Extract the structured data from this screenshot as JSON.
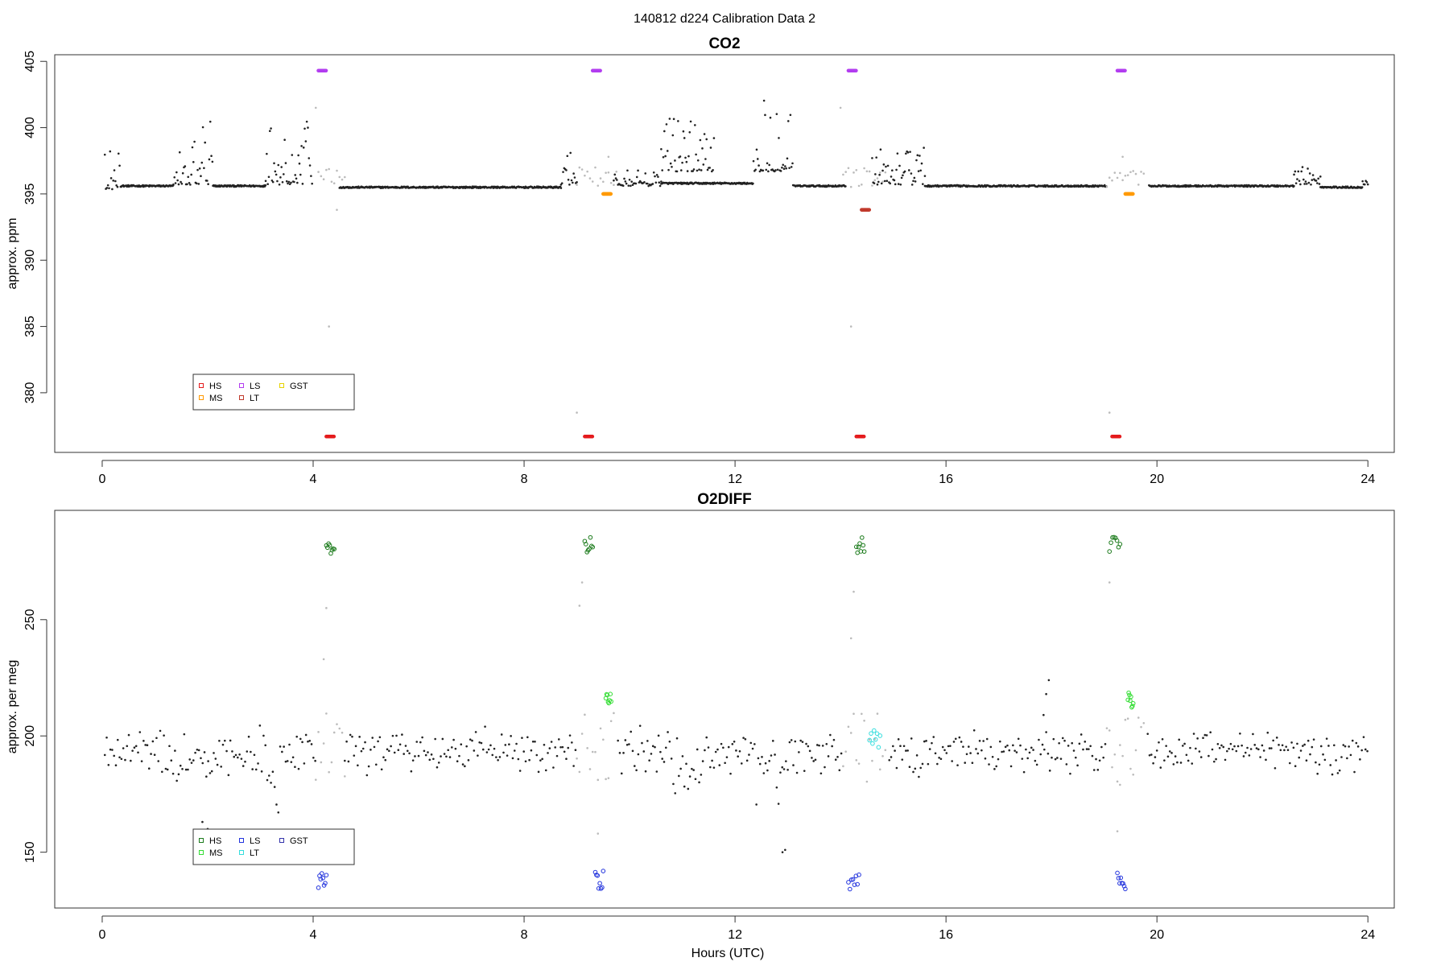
{
  "page_title": "140812   d224   Calibration Data 2",
  "shared_xlabel": "Hours (UTC)",
  "colors": {
    "data": "#222222",
    "excluded": "#bbbbbb",
    "HS_co2": "#e41a1c",
    "MS_co2": "#ff9900",
    "LS_co2": "#b23cf0",
    "LT_co2": "#c0392b",
    "GST_co2": "#e6d200",
    "HS_o2": "#1a7a1a",
    "MS_o2": "#33dd33",
    "LS_o2": "#2233dd",
    "LT_o2": "#33dddd",
    "GST_o2": "#3333aa"
  },
  "chart_data": [
    {
      "id": "co2",
      "type": "scatter",
      "title": "CO2",
      "ylabel": "approx. ppm",
      "xlabel": "",
      "xlim": [
        -0.9,
        24.5
      ],
      "ylim": [
        375.5,
        405.5
      ],
      "xticks": [
        "0",
        "4",
        "8",
        "12",
        "16",
        "20",
        "24"
      ],
      "yticks": [
        "380",
        "385",
        "390",
        "395",
        "400",
        "405"
      ],
      "legend": {
        "placement": "bottom-left",
        "entries": [
          [
            "HS",
            "MS"
          ],
          [
            "LS",
            "LT"
          ],
          [
            "GST"
          ]
        ]
      },
      "baseline_segments": [
        {
          "x": [
            0.35,
            1.35
          ],
          "y": 395.6
        },
        {
          "x": [
            2.1,
            3.1
          ],
          "y": 395.6
        },
        {
          "x": [
            4.5,
            8.7
          ],
          "y": 395.5
        },
        {
          "x": [
            10.6,
            12.35
          ],
          "y": 395.8
        },
        {
          "x": [
            13.1,
            14.1
          ],
          "y": 395.6
        },
        {
          "x": [
            15.6,
            19.05
          ],
          "y": 395.6
        },
        {
          "x": [
            19.85,
            22.6
          ],
          "y": 395.6
        },
        {
          "x": [
            23.1,
            23.9
          ],
          "y": 395.5
        }
      ],
      "calibration_runs": [
        {
          "name": "LS",
          "y": 404.3,
          "x_ranges": [
            [
              4.1,
              4.25
            ],
            [
              9.3,
              9.45
            ],
            [
              14.15,
              14.3
            ],
            [
              19.25,
              19.4
            ]
          ]
        },
        {
          "name": "HS",
          "y": 376.7,
          "x_ranges": [
            [
              4.25,
              4.4
            ],
            [
              9.15,
              9.3
            ],
            [
              14.3,
              14.45
            ],
            [
              19.15,
              19.3
            ]
          ]
        },
        {
          "name": "MS",
          "y": 395.0,
          "x_ranges": [
            [
              9.5,
              9.65
            ],
            [
              19.4,
              19.55
            ]
          ]
        },
        {
          "name": "LT",
          "y": 393.8,
          "x_ranges": [
            [
              14.4,
              14.55
            ]
          ]
        }
      ]
    },
    {
      "id": "o2",
      "type": "scatter",
      "title": "O2DIFF",
      "ylabel": "approx. per meg",
      "xlabel": "Hours (UTC)",
      "xlim": [
        -0.9,
        24.5
      ],
      "ylim": [
        126,
        297
      ],
      "xticks": [
        "0",
        "4",
        "8",
        "12",
        "16",
        "20",
        "24"
      ],
      "yticks": [
        "150",
        "200",
        "250"
      ],
      "legend": {
        "placement": "bottom-left",
        "entries": [
          [
            "HS",
            "MS"
          ],
          [
            "LS",
            "LT"
          ],
          [
            "GST"
          ]
        ]
      },
      "baseline": 193,
      "calibration_runs": [
        {
          "name": "HS",
          "y": 282,
          "x_ranges": [
            [
              4.25,
              4.4
            ],
            [
              9.15,
              9.3
            ],
            [
              14.3,
              14.45
            ],
            [
              19.1,
              19.3
            ]
          ]
        },
        {
          "name": "LS",
          "y": 138,
          "x_ranges": [
            [
              4.1,
              4.25
            ],
            [
              9.35,
              9.5
            ],
            [
              14.15,
              14.35
            ],
            [
              19.25,
              19.4
            ]
          ]
        },
        {
          "name": "MS",
          "y": 216,
          "x_ranges": [
            [
              9.55,
              9.65
            ],
            [
              19.45,
              19.55
            ]
          ]
        },
        {
          "name": "LT",
          "y": 199,
          "x_ranges": [
            [
              14.55,
              14.75
            ]
          ]
        }
      ]
    }
  ]
}
